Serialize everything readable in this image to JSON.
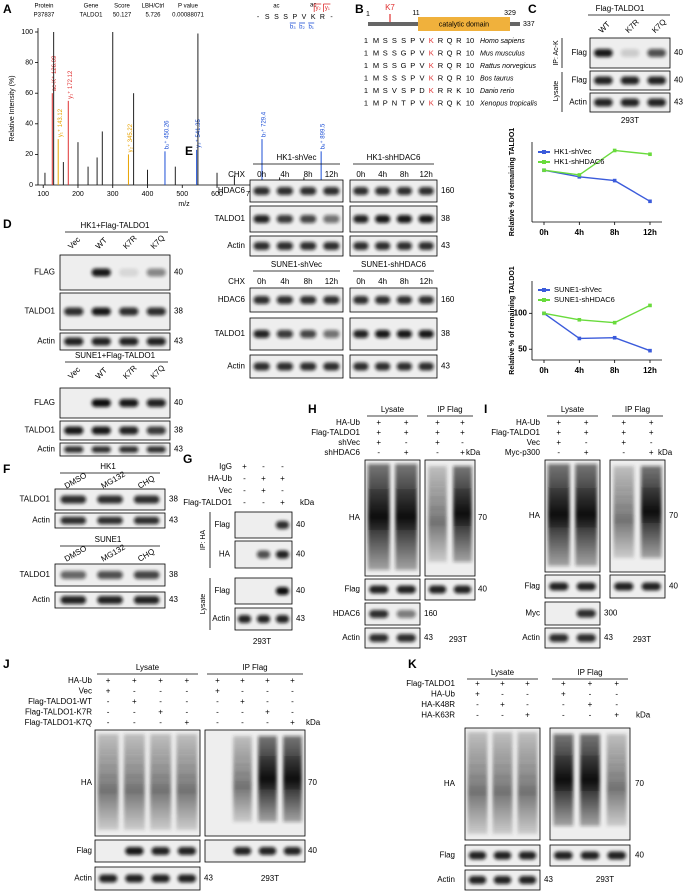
{
  "A": {
    "letter": "A",
    "header": [
      "Protein",
      "Gene",
      "Score",
      "LBH/Ctrl",
      "P value"
    ],
    "row": [
      "P37837",
      "TALDO1",
      "50.127",
      "5.726",
      "0.00088071"
    ],
    "peptide": [
      "-",
      "S",
      "S",
      "S",
      "P",
      "V",
      "K",
      "R",
      "-"
    ],
    "ac_marks": [
      "ac",
      "ac"
    ],
    "b_ions": [
      "b₃",
      "b₂",
      "b₁"
    ],
    "y_ions": [
      "y₂",
      "y₁"
    ]
  },
  "B": {
    "letter": "B",
    "site": "K7",
    "positions": [
      1,
      11,
      329,
      337
    ],
    "domain": "catalytic domain",
    "alignment": [
      {
        "start": 1,
        "seq": [
          "M",
          "S",
          "S",
          "S",
          "P",
          "V",
          "K",
          "R",
          "Q",
          "R"
        ],
        "end": 10,
        "species": "Homo sapiens"
      },
      {
        "start": 1,
        "seq": [
          "M",
          "S",
          "S",
          "G",
          "P",
          "V",
          "K",
          "R",
          "Q",
          "R"
        ],
        "end": 10,
        "species": "Mus musculus"
      },
      {
        "start": 1,
        "seq": [
          "M",
          "S",
          "S",
          "G",
          "P",
          "V",
          "K",
          "R",
          "Q",
          "R"
        ],
        "end": 10,
        "species": "Rattus norvegicus"
      },
      {
        "start": 1,
        "seq": [
          "M",
          "S",
          "S",
          "S",
          "P",
          "V",
          "K",
          "R",
          "Q",
          "R"
        ],
        "end": 10,
        "species": "Bos taurus"
      },
      {
        "start": 1,
        "seq": [
          "M",
          "S",
          "V",
          "S",
          "P",
          "D",
          "K",
          "R",
          "R",
          "K"
        ],
        "end": 10,
        "species": "Danio rerio"
      },
      {
        "start": 1,
        "seq": [
          "M",
          "P",
          "N",
          "T",
          "P",
          "V",
          "K",
          "R",
          "Q",
          "K"
        ],
        "end": 10,
        "species": "Xenopus tropicalis"
      }
    ]
  },
  "C": {
    "letter": "C",
    "group": "Flag-TALDO1",
    "lanes": [
      "WT",
      "K7R",
      "K7Q"
    ],
    "sections": [
      "IP: Ac-K",
      "Lysate"
    ],
    "blots": [
      {
        "label": "Flag",
        "kda": 40
      },
      {
        "label": "Flag",
        "kda": 40
      },
      {
        "label": "Actin",
        "kda": 43
      }
    ],
    "cell": "293T"
  },
  "D": {
    "letter": "D",
    "groups": [
      "HK1+Flag-TALDO1",
      "SUNE1+Flag-TALDO1"
    ],
    "lanes": [
      "Vec",
      "WT",
      "K7R",
      "K7Q"
    ],
    "blots": [
      {
        "label": "FLAG",
        "kda": 40
      },
      {
        "label": "TALDO1",
        "kda": 38
      },
      {
        "label": "Actin",
        "kda": 43
      }
    ]
  },
  "E": {
    "letter": "E",
    "groups": [
      "HK1-shVec",
      "HK1-shHDAC6",
      "SUNE1-shVec",
      "SUNE1-shHDAC6"
    ],
    "chx": "CHX",
    "times": [
      "0h",
      "4h",
      "8h",
      "12h"
    ],
    "blots": [
      {
        "label": "HDAC6",
        "kda": 160
      },
      {
        "label": "TALDO1",
        "kda": 38
      },
      {
        "label": "Actin",
        "kda": 43
      }
    ]
  },
  "F": {
    "letter": "F",
    "groups": [
      "HK1",
      "SUNE1"
    ],
    "lanes": [
      "DMSO",
      "MG132",
      "CHQ"
    ],
    "blots": [
      {
        "label": "TALDO1",
        "kda": 38
      },
      {
        "label": "Actin",
        "kda": 43
      }
    ]
  },
  "G": {
    "letter": "G",
    "rows": [
      {
        "label": "IgG",
        "signs": [
          "+",
          "-",
          "-"
        ]
      },
      {
        "label": "HA-Ub",
        "signs": [
          "-",
          "+",
          "+"
        ]
      },
      {
        "label": "Vec",
        "signs": [
          "-",
          "+",
          "-"
        ]
      },
      {
        "label": "Flag-TALDO1",
        "signs": [
          "-",
          "-",
          "+"
        ]
      }
    ],
    "unit": "kDa",
    "sections": [
      "IP: HA",
      "Lysate"
    ],
    "blots": [
      {
        "label": "Flag",
        "kda": 40
      },
      {
        "label": "HA",
        "kda": 40
      },
      {
        "label": "Flag",
        "kda": 40
      },
      {
        "label": "Actin",
        "kda": 43
      }
    ],
    "cell": "293T"
  },
  "H": {
    "letter": "H",
    "sections": [
      "Lysate",
      "IP Flag"
    ],
    "rows": [
      {
        "label": "HA-Ub",
        "signs": [
          "+",
          "+",
          "+",
          "+"
        ]
      },
      {
        "label": "Flag-TALDO1",
        "signs": [
          "+",
          "+",
          "+",
          "+"
        ]
      },
      {
        "label": "shVec",
        "signs": [
          "+",
          "-",
          "+",
          "-"
        ]
      },
      {
        "label": "shHDAC6",
        "signs": [
          "-",
          "+",
          "-",
          "+"
        ]
      }
    ],
    "unit": "kDa",
    "blots": [
      {
        "label": "HA",
        "kda": 70
      },
      {
        "label": "Flag",
        "kda": 40
      },
      {
        "label": "HDAC6",
        "kda": 160
      },
      {
        "label": "Actin",
        "kda": 43
      }
    ],
    "cell": "293T"
  },
  "I": {
    "letter": "I",
    "sections": [
      "Lysate",
      "IP Flag"
    ],
    "rows": [
      {
        "label": "HA-Ub",
        "signs": [
          "+",
          "+",
          "+",
          "+"
        ]
      },
      {
        "label": "Flag-TALDO1",
        "signs": [
          "+",
          "+",
          "+",
          "+"
        ]
      },
      {
        "label": "Vec",
        "signs": [
          "+",
          "-",
          "+",
          "-"
        ]
      },
      {
        "label": "Myc-p300",
        "signs": [
          "-",
          "+",
          "-",
          "+"
        ]
      }
    ],
    "unit": "kDa",
    "blots": [
      {
        "label": "HA",
        "kda": 70
      },
      {
        "label": "Flag",
        "kda": 40
      },
      {
        "label": "Myc",
        "kda": 300
      },
      {
        "label": "Actin",
        "kda": 43
      }
    ],
    "cell": "293T"
  },
  "J": {
    "letter": "J",
    "sections": [
      "Lysate",
      "IP Flag"
    ],
    "rows": [
      {
        "label": "HA-Ub",
        "signs": [
          "+",
          "+",
          "+",
          "+",
          "+",
          "+",
          "+",
          "+"
        ]
      },
      {
        "label": "Vec",
        "signs": [
          "+",
          "-",
          "-",
          "-",
          "+",
          "-",
          "-",
          "-"
        ]
      },
      {
        "label": "Flag-TALDO1-WT",
        "signs": [
          "-",
          "+",
          "-",
          "-",
          "-",
          "+",
          "-",
          "-"
        ]
      },
      {
        "label": "Flag-TALDO1-K7R",
        "signs": [
          "-",
          "-",
          "+",
          "-",
          "-",
          "-",
          "+",
          "-"
        ]
      },
      {
        "label": "Flag-TALDO1-K7Q",
        "signs": [
          "-",
          "-",
          "-",
          "+",
          "-",
          "-",
          "-",
          "+"
        ]
      }
    ],
    "unit": "kDa",
    "blots": [
      {
        "label": "HA",
        "kda": 70
      },
      {
        "label": "Flag",
        "kda": 40
      },
      {
        "label": "Actin",
        "kda": 43
      }
    ],
    "cell": "293T"
  },
  "K": {
    "letter": "K",
    "sections": [
      "Lysate",
      "IP Flag"
    ],
    "rows": [
      {
        "label": "Flag-TALDO1",
        "signs": [
          "+",
          "+",
          "+",
          "+",
          "+",
          "+"
        ]
      },
      {
        "label": "HA-Ub",
        "signs": [
          "+",
          "-",
          "-",
          "+",
          "-",
          "-"
        ]
      },
      {
        "label": "HA-K48R",
        "signs": [
          "-",
          "+",
          "-",
          "-",
          "+",
          "-"
        ]
      },
      {
        "label": "HA-K63R",
        "signs": [
          "-",
          "-",
          "+",
          "-",
          "-",
          "+"
        ]
      }
    ],
    "unit": "kDa",
    "blots": [
      {
        "label": "HA",
        "kda": 70
      },
      {
        "label": "Flag",
        "kda": 40
      },
      {
        "label": "Actin",
        "kda": 43
      }
    ],
    "cell": "293T"
  },
  "chart_data": [
    {
      "type": "stem",
      "xlabel": "m/z",
      "ylabel": "Relative Intensity (%)",
      "x": [
        105,
        126.09,
        130,
        143.12,
        158,
        172.12,
        200,
        229,
        255,
        270,
        300,
        345.22,
        360,
        400,
        450.26,
        480,
        541.35,
        545,
        600,
        650,
        729.4,
        780,
        850,
        899.5
      ],
      "values": [
        8,
        60,
        100,
        30,
        15,
        55,
        28,
        12,
        18,
        35,
        100,
        20,
        60,
        10,
        22,
        12,
        23,
        99,
        8,
        6,
        30,
        5,
        5,
        22
      ],
      "peak_labels": [
        null,
        "ac-K⁺ 126.09",
        null,
        "y₁⁺ 143.12",
        null,
        "y₁⁺ 172.12",
        null,
        null,
        null,
        null,
        null,
        "y₂⁺ 345.22",
        null,
        null,
        "b₂⁺ 450.26",
        null,
        "y₃⁺ 541.35",
        null,
        null,
        null,
        "b₇⁺ 729.4",
        null,
        null,
        "b₈⁺ 899.5"
      ],
      "colors": [
        "#222",
        "#e03131",
        "#222",
        "#e8a200",
        "#222",
        "#e03131",
        "#222",
        "#222",
        "#222",
        "#222",
        "#222",
        "#e8a200",
        "#222",
        "#222",
        "#1c4fd6",
        "#222",
        "#1c4fd6",
        "#222",
        "#222",
        "#222",
        "#1c4fd6",
        "#222",
        "#222",
        "#1c4fd6"
      ],
      "xlim": [
        85,
        925
      ],
      "xticks": [
        100,
        200,
        300,
        400,
        500,
        600,
        700,
        800,
        900
      ],
      "ylim": [
        0,
        100
      ],
      "yticks": [
        0,
        20,
        40,
        60,
        80,
        100
      ]
    },
    {
      "type": "line",
      "ylabel": "Relative % of remaining TALDO1",
      "categories": [
        "0h",
        "4h",
        "8h",
        "12h"
      ],
      "series": [
        {
          "name": "HK1-shVec",
          "color": "#3b5bdb",
          "values": [
            100,
            93,
            89,
            67
          ]
        },
        {
          "name": "HK1-shHDAC6",
          "color": "#69db3c",
          "values": [
            100,
            95,
            121,
            117
          ]
        }
      ],
      "ylim": [
        45,
        130
      ]
    },
    {
      "type": "line",
      "ylabel": "Relative % of remaining TALDO1",
      "categories": [
        "0h",
        "4h",
        "8h",
        "12h"
      ],
      "series": [
        {
          "name": "SUNE1-shVec",
          "color": "#3b5bdb",
          "values": [
            100,
            65,
            66,
            48
          ]
        },
        {
          "name": "SUNE1-shHDAC6",
          "color": "#69db3c",
          "values": [
            100,
            91,
            87,
            111
          ]
        }
      ],
      "ylim": [
        35,
        145
      ],
      "yticks": [
        50,
        100
      ]
    }
  ]
}
